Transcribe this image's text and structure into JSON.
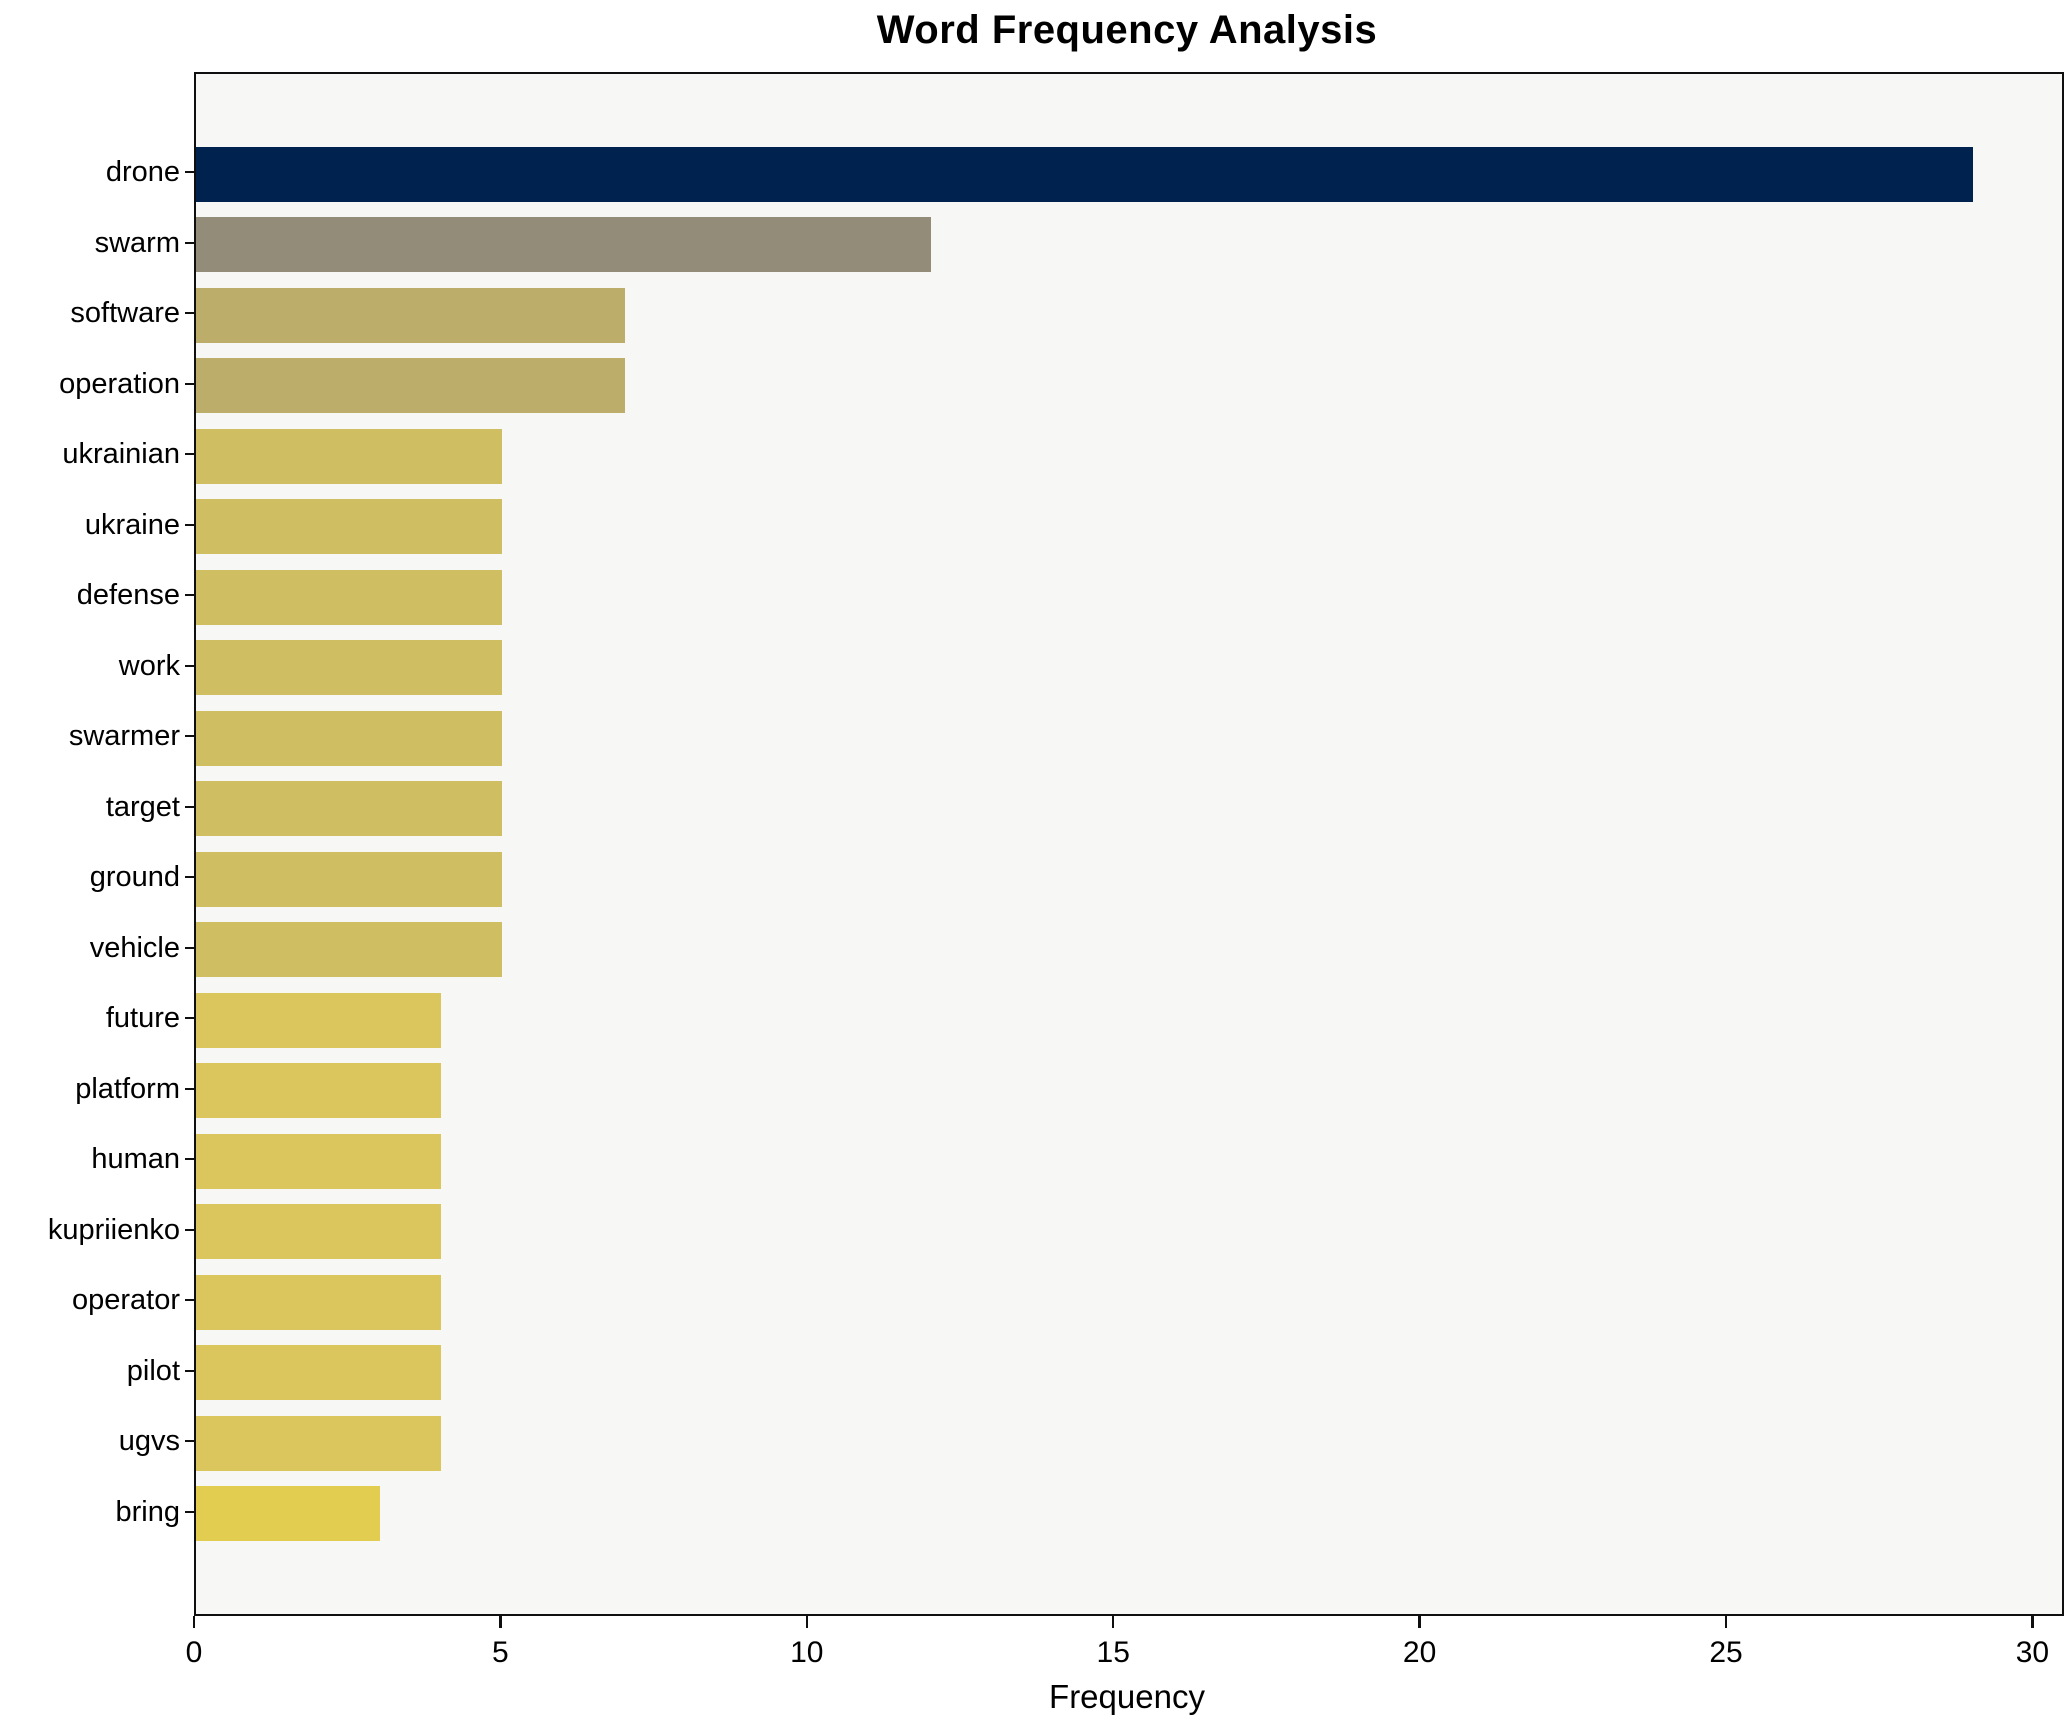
{
  "chart_data": {
    "type": "bar",
    "orientation": "horizontal",
    "title": "Word Frequency Analysis",
    "xlabel": "Frequency",
    "ylabel": "",
    "categories": [
      "drone",
      "swarm",
      "software",
      "operation",
      "ukrainian",
      "ukraine",
      "defense",
      "work",
      "swarmer",
      "target",
      "ground",
      "vehicle",
      "future",
      "platform",
      "human",
      "kupriienko",
      "operator",
      "pilot",
      "ugvs",
      "bring"
    ],
    "values": [
      29,
      12,
      7,
      7,
      5,
      5,
      5,
      5,
      5,
      5,
      5,
      5,
      4,
      4,
      4,
      4,
      4,
      4,
      4,
      3
    ],
    "bar_colors": [
      "#00224e",
      "#938c79",
      "#bcae6a",
      "#bcae6a",
      "#cfbe62",
      "#cfbe62",
      "#cfbe62",
      "#cfbe62",
      "#cfbe62",
      "#cfbe62",
      "#cfbe62",
      "#cfbe62",
      "#dac65c",
      "#dac65c",
      "#dac65c",
      "#dac65c",
      "#dac65c",
      "#dac65c",
      "#dac65c",
      "#e3cd51"
    ],
    "xlim": [
      0,
      30.45
    ],
    "xticks": [
      0,
      5,
      10,
      15,
      20,
      25,
      30
    ],
    "grid": false,
    "legend": false,
    "plot_background": "#f7f7f5",
    "figure_background": "#ffffff",
    "spine_color": "#0f0f0f"
  }
}
